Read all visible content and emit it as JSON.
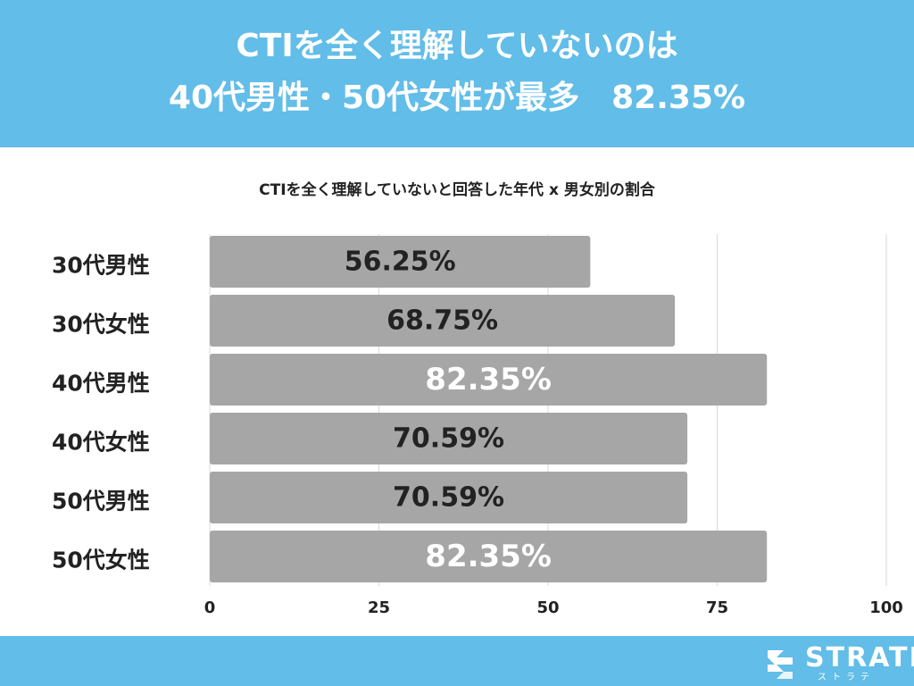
{
  "header": {
    "title_line1": "CTIを全く理解していないのは",
    "title_line2": "40代男性・50代女性が最多　82.35%",
    "background_color": "#62bde8"
  },
  "chart_data": {
    "type": "bar",
    "orientation": "horizontal",
    "title": "CTIを全く理解していないと回答した年代 x 男女別の割合",
    "categories": [
      "30代男性",
      "30代女性",
      "40代男性",
      "40代女性",
      "50代男性",
      "50代女性"
    ],
    "values": [
      56.25,
      68.75,
      82.35,
      70.59,
      70.59,
      82.35
    ],
    "labels": [
      "56.25%",
      "68.75%",
      "82.35%",
      "70.59%",
      "70.59%",
      "82.35%"
    ],
    "highlight": [
      false,
      false,
      true,
      false,
      false,
      true
    ],
    "xlim": [
      0,
      100
    ],
    "xticks": [
      0,
      25,
      50,
      75,
      100
    ],
    "grid": true,
    "bar_color": "#a6a6a6"
  },
  "footer": {
    "logo_text": "STRATE",
    "logo_sub": "ストラテ",
    "logo_icon": "strate-logo-icon",
    "background_color": "#62bde8"
  }
}
